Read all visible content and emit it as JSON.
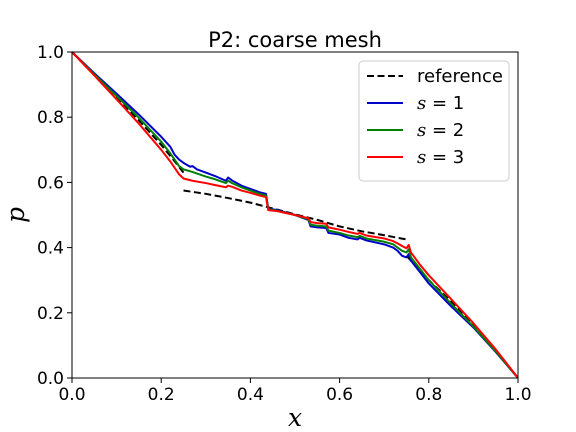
{
  "chart_data": {
    "type": "line",
    "title": "P2: coarse mesh",
    "xlabel": "x",
    "ylabel": "p",
    "xlim": [
      0.0,
      1.0
    ],
    "ylim": [
      0.0,
      1.0
    ],
    "xticks": [
      "0.0",
      "0.2",
      "0.4",
      "0.6",
      "0.8",
      "1.0"
    ],
    "yticks": [
      "0.0",
      "0.2",
      "0.4",
      "0.6",
      "0.8",
      "1.0"
    ],
    "grid": false,
    "legend_position": "top-right",
    "series": [
      {
        "name": "reference",
        "color": "#000000",
        "dash": true,
        "segments": [
          [
            [
              0.0,
              1.0
            ],
            [
              0.05,
              0.93
            ],
            [
              0.1,
              0.86
            ],
            [
              0.15,
              0.79
            ],
            [
              0.2,
              0.715
            ],
            [
              0.23,
              0.665
            ],
            [
              0.25,
              0.63
            ]
          ],
          [
            [
              0.25,
              0.575
            ],
            [
              0.3,
              0.565
            ],
            [
              0.35,
              0.552
            ],
            [
              0.4,
              0.538
            ],
            [
              0.45,
              0.52
            ],
            [
              0.5,
              0.502
            ],
            [
              0.55,
              0.485
            ],
            [
              0.6,
              0.465
            ],
            [
              0.65,
              0.45
            ],
            [
              0.7,
              0.438
            ],
            [
              0.75,
              0.425
            ]
          ],
          [
            [
              0.75,
              0.375
            ],
            [
              0.78,
              0.33
            ],
            [
              0.8,
              0.3
            ],
            [
              0.85,
              0.235
            ],
            [
              0.9,
              0.165
            ],
            [
              0.95,
              0.085
            ],
            [
              1.0,
              0.0
            ]
          ]
        ]
      },
      {
        "name": "s = 1",
        "label_var": "s",
        "label_val": "1",
        "color": "#0000cc",
        "dash": false,
        "segments": [
          [
            [
              0.0,
              1.0
            ],
            [
              0.05,
              0.935
            ],
            [
              0.1,
              0.872
            ],
            [
              0.15,
              0.808
            ],
            [
              0.2,
              0.74
            ],
            [
              0.22,
              0.71
            ],
            [
              0.23,
              0.685
            ],
            [
              0.24,
              0.67
            ],
            [
              0.25,
              0.66
            ],
            [
              0.26,
              0.652
            ],
            [
              0.265,
              0.648
            ],
            [
              0.27,
              0.65
            ],
            [
              0.28,
              0.64
            ],
            [
              0.3,
              0.63
            ],
            [
              0.32,
              0.62
            ],
            [
              0.345,
              0.605
            ],
            [
              0.35,
              0.615
            ],
            [
              0.36,
              0.605
            ],
            [
              0.38,
              0.59
            ],
            [
              0.4,
              0.58
            ],
            [
              0.42,
              0.57
            ],
            [
              0.435,
              0.565
            ],
            [
              0.44,
              0.52
            ],
            [
              0.46,
              0.515
            ],
            [
              0.5,
              0.5
            ],
            [
              0.52,
              0.49
            ],
            [
              0.53,
              0.485
            ],
            [
              0.535,
              0.465
            ],
            [
              0.55,
              0.462
            ],
            [
              0.57,
              0.46
            ],
            [
              0.575,
              0.445
            ],
            [
              0.6,
              0.44
            ],
            [
              0.62,
              0.43
            ],
            [
              0.64,
              0.425
            ],
            [
              0.645,
              0.43
            ],
            [
              0.66,
              0.422
            ],
            [
              0.7,
              0.41
            ],
            [
              0.72,
              0.4
            ],
            [
              0.73,
              0.39
            ],
            [
              0.74,
              0.375
            ],
            [
              0.75,
              0.37
            ],
            [
              0.755,
              0.38
            ],
            [
              0.76,
              0.36
            ],
            [
              0.78,
              0.325
            ],
            [
              0.8,
              0.29
            ],
            [
              0.85,
              0.22
            ],
            [
              0.9,
              0.155
            ],
            [
              0.95,
              0.08
            ],
            [
              1.0,
              0.0
            ]
          ]
        ]
      },
      {
        "name": "s = 2",
        "label_var": "s",
        "label_val": "2",
        "color": "#008000",
        "dash": false,
        "segments": [
          [
            [
              0.0,
              1.0
            ],
            [
              0.05,
              0.932
            ],
            [
              0.1,
              0.865
            ],
            [
              0.15,
              0.798
            ],
            [
              0.2,
              0.725
            ],
            [
              0.22,
              0.69
            ],
            [
              0.23,
              0.67
            ],
            [
              0.24,
              0.65
            ],
            [
              0.25,
              0.64
            ],
            [
              0.27,
              0.632
            ],
            [
              0.3,
              0.618
            ],
            [
              0.32,
              0.61
            ],
            [
              0.345,
              0.598
            ],
            [
              0.35,
              0.605
            ],
            [
              0.36,
              0.597
            ],
            [
              0.38,
              0.585
            ],
            [
              0.4,
              0.575
            ],
            [
              0.42,
              0.565
            ],
            [
              0.435,
              0.56
            ],
            [
              0.44,
              0.518
            ],
            [
              0.46,
              0.513
            ],
            [
              0.5,
              0.5
            ],
            [
              0.53,
              0.487
            ],
            [
              0.535,
              0.47
            ],
            [
              0.55,
              0.467
            ],
            [
              0.57,
              0.465
            ],
            [
              0.575,
              0.452
            ],
            [
              0.6,
              0.445
            ],
            [
              0.62,
              0.437
            ],
            [
              0.64,
              0.432
            ],
            [
              0.645,
              0.436
            ],
            [
              0.66,
              0.428
            ],
            [
              0.7,
              0.418
            ],
            [
              0.72,
              0.41
            ],
            [
              0.73,
              0.4
            ],
            [
              0.74,
              0.39
            ],
            [
              0.75,
              0.385
            ],
            [
              0.755,
              0.395
            ],
            [
              0.76,
              0.37
            ],
            [
              0.78,
              0.335
            ],
            [
              0.8,
              0.3
            ],
            [
              0.85,
              0.228
            ],
            [
              0.9,
              0.158
            ],
            [
              0.95,
              0.082
            ],
            [
              1.0,
              0.0
            ]
          ]
        ]
      },
      {
        "name": "s = 3",
        "label_var": "s",
        "label_val": "3",
        "color": "#ff0000",
        "dash": false,
        "segments": [
          [
            [
              0.0,
              1.0
            ],
            [
              0.05,
              0.928
            ],
            [
              0.1,
              0.855
            ],
            [
              0.15,
              0.78
            ],
            [
              0.2,
              0.7
            ],
            [
              0.22,
              0.665
            ],
            [
              0.23,
              0.645
            ],
            [
              0.24,
              0.625
            ],
            [
              0.25,
              0.612
            ],
            [
              0.27,
              0.605
            ],
            [
              0.3,
              0.598
            ],
            [
              0.32,
              0.592
            ],
            [
              0.345,
              0.585
            ],
            [
              0.35,
              0.59
            ],
            [
              0.36,
              0.586
            ],
            [
              0.38,
              0.575
            ],
            [
              0.4,
              0.568
            ],
            [
              0.42,
              0.56
            ],
            [
              0.435,
              0.555
            ],
            [
              0.44,
              0.515
            ],
            [
              0.46,
              0.512
            ],
            [
              0.5,
              0.5
            ],
            [
              0.53,
              0.49
            ],
            [
              0.535,
              0.478
            ],
            [
              0.55,
              0.475
            ],
            [
              0.57,
              0.473
            ],
            [
              0.575,
              0.462
            ],
            [
              0.6,
              0.455
            ],
            [
              0.62,
              0.448
            ],
            [
              0.64,
              0.442
            ],
            [
              0.645,
              0.445
            ],
            [
              0.66,
              0.437
            ],
            [
              0.7,
              0.428
            ],
            [
              0.72,
              0.42
            ],
            [
              0.73,
              0.413
            ],
            [
              0.74,
              0.405
            ],
            [
              0.75,
              0.398
            ],
            [
              0.755,
              0.408
            ],
            [
              0.76,
              0.385
            ],
            [
              0.78,
              0.348
            ],
            [
              0.8,
              0.315
            ],
            [
              0.85,
              0.242
            ],
            [
              0.9,
              0.168
            ],
            [
              0.95,
              0.088
            ],
            [
              1.0,
              0.0
            ]
          ]
        ]
      }
    ]
  }
}
